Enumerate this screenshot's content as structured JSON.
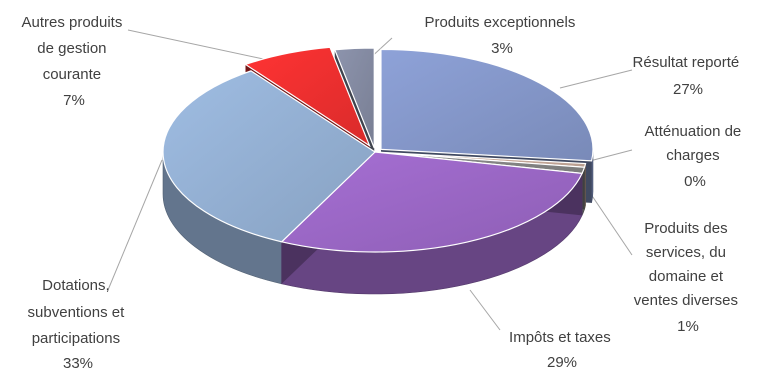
{
  "chart_data": {
    "type": "pie",
    "title": "",
    "legend": "none",
    "slices": [
      {
        "name": "Résultat reporté",
        "value": 27,
        "label": "27%",
        "color": "#8ea2d8"
      },
      {
        "name": "Atténuation de charges",
        "value": 0,
        "label": "0%",
        "color": "#d8b9a8"
      },
      {
        "name": "Produits des services, du domaine et ventes diverses",
        "value": 1,
        "label": "1%",
        "color": "#8f8f8f"
      },
      {
        "name": "Impôts et taxes",
        "value": 29,
        "label": "29%",
        "color": "#a66fd4"
      },
      {
        "name": "Dotations, subventions et participations",
        "value": 33,
        "label": "33%",
        "color": "#9fbde3"
      },
      {
        "name": "Autres produits de gestion courante",
        "value": 7,
        "label": "7%",
        "color": "#ff3333"
      },
      {
        "name": "Produits exceptionnels",
        "value": 3,
        "label": "3%",
        "color": "#8d94ad"
      }
    ]
  }
}
